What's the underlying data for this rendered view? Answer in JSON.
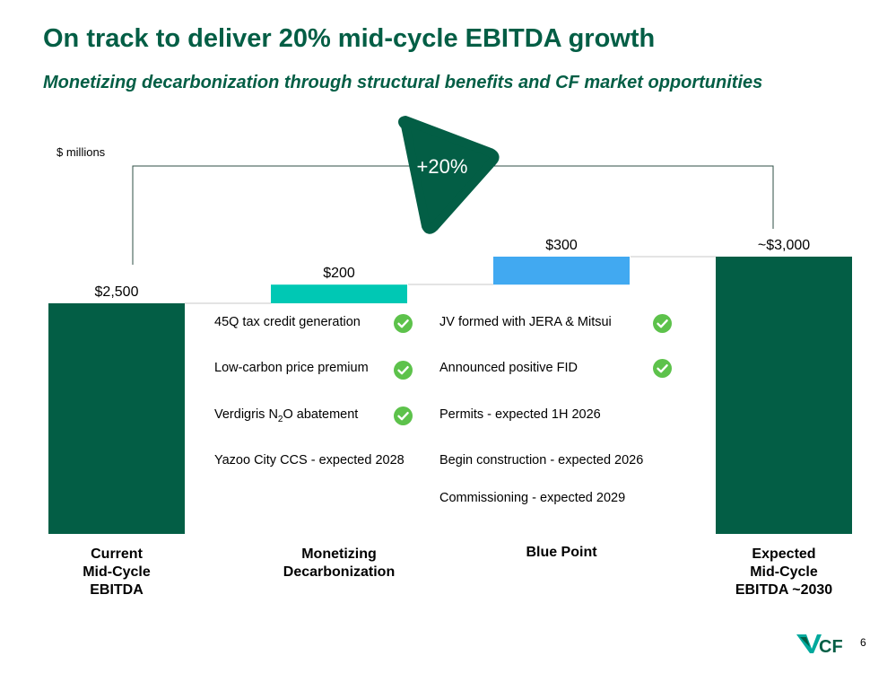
{
  "title": "On track to deliver 20% mid-cycle EBITDA growth",
  "subtitle": "Monetizing decarbonization through structural benefits and CF market opportunities",
  "units": "$ millions",
  "growth_label": "+20%",
  "colors": {
    "title": "#035e45",
    "dark_green": "#035e45",
    "teal": "#00c8b4",
    "blue": "#41a9f1",
    "check": "#5dc24b",
    "growth_triangle": "#035e45"
  },
  "chart_data": {
    "type": "waterfall",
    "units": "$ millions",
    "categories": [
      "Current Mid-Cycle EBITDA",
      "Monetizing Decarbonization",
      "Blue Point",
      "Expected Mid-Cycle EBITDA ~2030"
    ],
    "category_lines": [
      [
        "Current",
        "Mid-Cycle",
        "EBITDA"
      ],
      [
        "Monetizing",
        "Decarbonization"
      ],
      [
        "Blue Point"
      ],
      [
        "Expected",
        "Mid-Cycle",
        "EBITDA ~2030"
      ]
    ],
    "bars": [
      {
        "kind": "total",
        "start": 0,
        "end": 2500,
        "label": "$2,500"
      },
      {
        "kind": "increment",
        "start": 2500,
        "end": 2700,
        "label": "$200"
      },
      {
        "kind": "increment",
        "start": 2700,
        "end": 3000,
        "label": "$300"
      },
      {
        "kind": "total",
        "start": 0,
        "end": 3000,
        "label": "~$3,000"
      }
    ],
    "growth_annotation": "+20%"
  },
  "decarbonization_items": [
    {
      "text": "45Q tax credit generation",
      "done": true
    },
    {
      "text": "Low-carbon price premium",
      "done": true
    },
    {
      "text_before": "Verdigris N",
      "sub": "2",
      "text_after": "O abatement",
      "done": true
    },
    {
      "text": "Yazoo City CCS - expected 2028",
      "done": false
    }
  ],
  "bluepoint_items": [
    {
      "text": "JV formed with JERA & Mitsui",
      "done": true
    },
    {
      "text": "Announced positive FID",
      "done": true
    },
    {
      "text": "Permits - expected 1H 2026",
      "done": false
    },
    {
      "text": "Begin construction - expected 2026",
      "done": false
    },
    {
      "text": "Commissioning - expected 2029",
      "done": false
    }
  ],
  "logo_text": "CF",
  "page_number": "6"
}
